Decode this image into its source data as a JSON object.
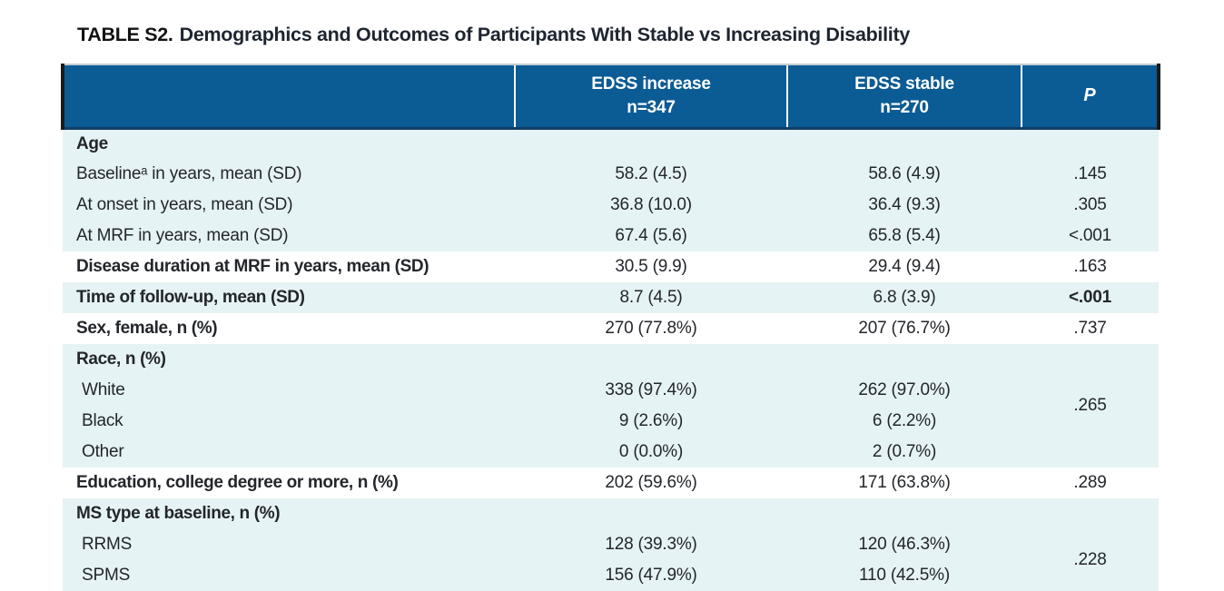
{
  "title": {
    "prefix": "TABLE S2.",
    "text": "Demographics and Outcomes of Participants With Stable vs Increasing Disability"
  },
  "colors": {
    "header_bg": "#0b5b95",
    "band_teal": "#e6f3f4",
    "header_border": "#0e3e66",
    "text": "#23262b"
  },
  "table": {
    "header": {
      "col_group1": {
        "line1": "EDSS increase",
        "line2": "n=347"
      },
      "col_group2": {
        "line1": "EDSS stable",
        "line2": "n=270"
      },
      "p_label": "P"
    },
    "rows": [
      {
        "label": "Age",
        "bold": true,
        "indent": false,
        "band": "teal",
        "v1": "",
        "v2": "",
        "p": "",
        "p_bold": false,
        "p_rowspan": 1
      },
      {
        "label": "Baselineᵃ in years, mean (SD)",
        "bold": false,
        "indent": false,
        "band": "teal",
        "v1": "58.2 (4.5)",
        "v2": "58.6 (4.9)",
        "p": ".145",
        "p_bold": false,
        "p_rowspan": 1
      },
      {
        "label": "At onset in years, mean (SD)",
        "bold": false,
        "indent": false,
        "band": "teal",
        "v1": "36.8 (10.0)",
        "v2": "36.4 (9.3)",
        "p": ".305",
        "p_bold": false,
        "p_rowspan": 1
      },
      {
        "label": "At MRF in years, mean (SD)",
        "bold": false,
        "indent": false,
        "band": "teal",
        "v1": "67.4 (5.6)",
        "v2": "65.8 (5.4)",
        "p": "<.001",
        "p_bold": false,
        "p_rowspan": 1
      },
      {
        "label": "Disease duration at MRF in years, mean (SD)",
        "bold": true,
        "indent": false,
        "band": "white",
        "v1": "30.5 (9.9)",
        "v2": "29.4 (9.4)",
        "p": ".163",
        "p_bold": false,
        "p_rowspan": 1
      },
      {
        "label": "Time of follow-up, mean (SD)",
        "bold": true,
        "indent": false,
        "band": "teal",
        "v1": "8.7 (4.5)",
        "v2": "6.8 (3.9)",
        "p": "<.001",
        "p_bold": true,
        "p_rowspan": 1
      },
      {
        "label": "Sex, female, n (%)",
        "bold": true,
        "indent": false,
        "band": "white",
        "v1": "270 (77.8%)",
        "v2": "207 (76.7%)",
        "p": ".737",
        "p_bold": false,
        "p_rowspan": 1
      },
      {
        "label": "Race, n (%)",
        "bold": true,
        "indent": false,
        "band": "teal",
        "v1": "",
        "v2": "",
        "p": "",
        "p_bold": false,
        "p_rowspan": 1
      },
      {
        "label": "White",
        "bold": false,
        "indent": true,
        "band": "teal",
        "v1": "338 (97.4%)",
        "v2": "262 (97.0%)",
        "p": ".265",
        "p_bold": false,
        "p_rowspan": 2
      },
      {
        "label": "Black",
        "bold": false,
        "indent": true,
        "band": "teal",
        "v1": "9 (2.6%)",
        "v2": "6 (2.2%)",
        "p": "",
        "p_bold": false,
        "p_rowspan": 0
      },
      {
        "label": "Other",
        "bold": false,
        "indent": true,
        "band": "teal",
        "v1": "0 (0.0%)",
        "v2": "2 (0.7%)",
        "p": "",
        "p_bold": false,
        "p_rowspan": 1
      },
      {
        "label": "Education, college degree or more, n (%)",
        "bold": true,
        "indent": false,
        "band": "white",
        "v1": "202 (59.6%)",
        "v2": "171 (63.8%)",
        "p": ".289",
        "p_bold": false,
        "p_rowspan": 1
      },
      {
        "label": "MS type at baseline, n (%)",
        "bold": true,
        "indent": false,
        "band": "teal",
        "v1": "",
        "v2": "",
        "p": "",
        "p_bold": false,
        "p_rowspan": 1
      },
      {
        "label": "RRMS",
        "bold": false,
        "indent": true,
        "band": "teal",
        "v1": "128 (39.3%)",
        "v2": "120 (46.3%)",
        "p": ".228",
        "p_bold": false,
        "p_rowspan": 2
      },
      {
        "label": "SPMS",
        "bold": false,
        "indent": true,
        "band": "teal",
        "v1": "156 (47.9%)",
        "v2": "110 (42.5%)",
        "p": "",
        "p_bold": false,
        "p_rowspan": 0
      }
    ]
  }
}
